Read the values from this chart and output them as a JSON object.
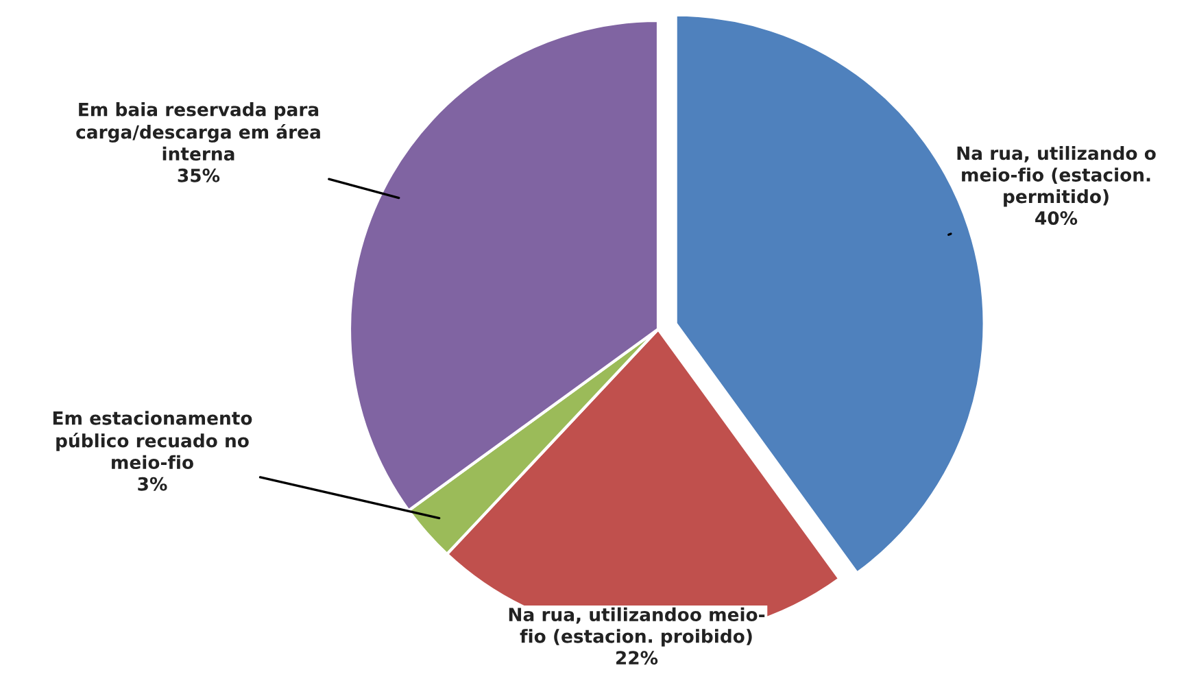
{
  "chart_data": {
    "type": "pie",
    "categories": [
      "Na rua, utilizando o\nmeio-fio (estacion.\npermitido)",
      "Na rua, utilizandoo meio-\nfio (estacion. proibido)",
      "Em estacionamento\npúblico recuado no\nmeio-fio",
      "Em baia reservada para\ncarga/descarga em área\ninterna"
    ],
    "values": [
      40,
      22,
      3,
      35
    ],
    "value_labels": [
      "40%",
      "22%",
      "3%",
      "35%"
    ],
    "colors": [
      "#4f81bd",
      "#c0504d",
      "#9bbb59",
      "#8064a2"
    ],
    "legend": false
  }
}
